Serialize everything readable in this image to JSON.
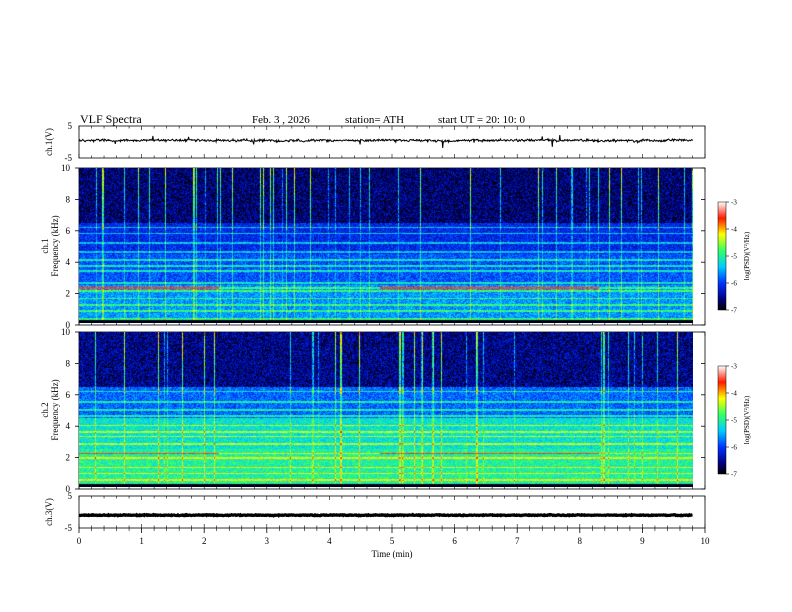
{
  "header": {
    "title": "VLF  Spectra",
    "date": "Feb. 3  , 2026",
    "station": "station= ATH",
    "start": "start  UT  =    20: 10: 0"
  },
  "chart_data": [
    {
      "type": "line",
      "name": "ch1-waveform",
      "ylabel": "ch.1(V)",
      "ylim": [
        -5,
        5
      ],
      "yticks": [
        "5",
        "-5"
      ],
      "x_range_min": [
        0,
        9.8
      ],
      "baseline_v": 0.5,
      "noise_v": 0.6
    },
    {
      "type": "heatmap",
      "name": "ch1-spectrogram",
      "ylabel_line1": "ch.1",
      "ylabel_line2": "Frequency  (kHz)",
      "ylim": [
        0,
        10
      ],
      "yticks": [
        "0",
        "2",
        "4",
        "6",
        "8",
        "10"
      ],
      "x_range_min": [
        0,
        9.8
      ],
      "colorbar": {
        "label": "log(PSD)(V²/Hz)",
        "range": [
          -7,
          -3
        ],
        "ticks": [
          "-3",
          "-4",
          "-5",
          "-6",
          "-7"
        ]
      },
      "lines_khz": [
        0.3,
        0.8,
        1.2,
        1.6,
        2.1,
        2.3,
        2.6,
        3.4,
        3.7,
        4.1,
        4.6,
        5.2,
        5.8,
        6.2
      ],
      "hot_line_khz": 2.3
    },
    {
      "type": "heatmap",
      "name": "ch2-spectrogram",
      "ylabel_line1": "ch.2",
      "ylabel_line2": "Frequency  (kHz)",
      "ylim": [
        0,
        10
      ],
      "yticks": [
        "0",
        "2",
        "4",
        "6",
        "8",
        "10"
      ],
      "x_range_min": [
        0,
        9.8
      ],
      "colorbar": {
        "label": "log(PSD)(V²/Hz)",
        "range": [
          -7,
          -3
        ],
        "ticks": [
          "-3",
          "-4",
          "-5",
          "-6",
          "-7"
        ]
      },
      "lines_khz": [
        0.5,
        0.9,
        1.3,
        1.9,
        2.2,
        2.8,
        3.3,
        3.6,
        4.0,
        4.6,
        5.0,
        5.5,
        6.2
      ],
      "hot_line_khz": 2.2
    },
    {
      "type": "line",
      "name": "ch3-waveform",
      "ylabel": "ch.3(V)",
      "ylim": [
        -5,
        5
      ],
      "yticks": [
        "5",
        "-5"
      ],
      "x_range_min": [
        0,
        9.8
      ],
      "baseline_v": -1.0,
      "noise_v": 0.2
    }
  ],
  "x_axis": {
    "label": "Time  (min)",
    "range": [
      0,
      10
    ],
    "ticks": [
      "0",
      "1",
      "2",
      "3",
      "4",
      "5",
      "6",
      "7",
      "8",
      "9",
      "10"
    ]
  }
}
